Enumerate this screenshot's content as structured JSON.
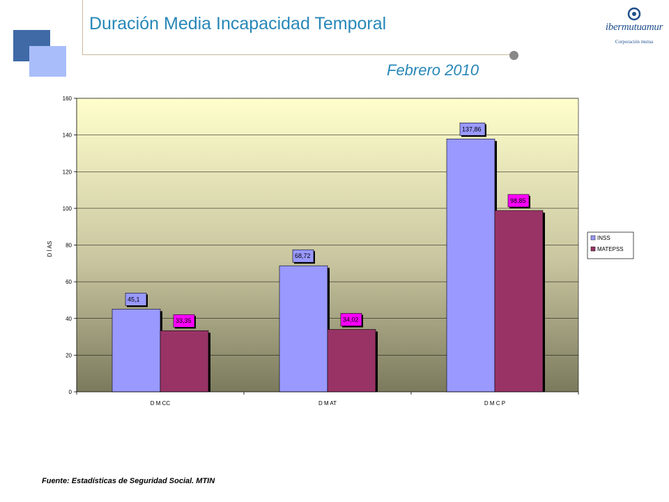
{
  "header": {
    "title": "Duración Media Incapacidad Temporal",
    "subtitle": "Febrero 2010"
  },
  "logo": {
    "name": "ibermutuamur",
    "sub_name": "Corporación mutua"
  },
  "footer": {
    "source": "Fuente: Estadísticas de Seguridad Social. MTIN"
  },
  "colors": {
    "title_blue": "#2787b8",
    "inss": "#9999ff",
    "matepss": "#993366",
    "matepss_label_bg": "#ff00ff"
  },
  "chart_data": {
    "type": "bar",
    "categories": [
      "DMCC",
      "DMAT",
      "DMCP"
    ],
    "category_labels": [
      "D M CC",
      "D M AT",
      "D M C P"
    ],
    "series": [
      {
        "name": "INSS",
        "values": [
          45.1,
          68.72,
          137.86
        ],
        "labels": [
          "45,1",
          "68,72",
          "137,86"
        ],
        "color": "#9999ff"
      },
      {
        "name": "MATEPSS",
        "values": [
          33.35,
          34.02,
          98.85
        ],
        "labels": [
          "33,35",
          "34,02",
          "98,85"
        ],
        "color": "#993366"
      }
    ],
    "ylabel": "D Í AS",
    "ylim": [
      0,
      160
    ],
    "yticks": [
      0,
      20,
      40,
      60,
      80,
      100,
      120,
      140,
      160
    ],
    "grid": true,
    "legend": "right",
    "background": "gradient light-yellow to olive"
  }
}
